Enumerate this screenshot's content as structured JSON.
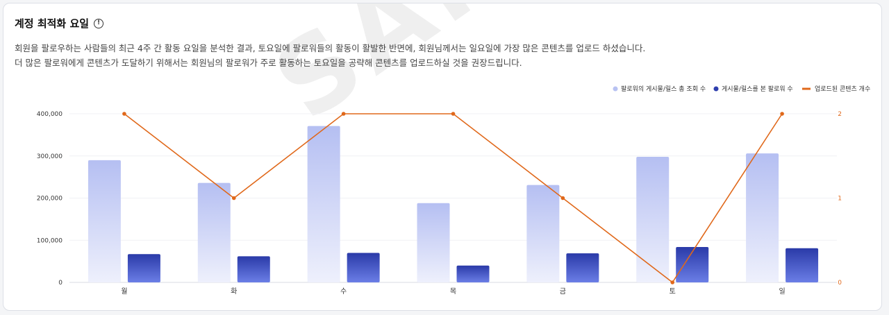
{
  "header": {
    "title": "계정 최적화 요일",
    "info_icon": "info-icon",
    "desc_line1": "회원을 팔로우하는 사람들의 최근 4주 간 활동 요일을 분석한 결과, 토요일에 팔로워들의 활동이 활발한 반면에, 회원님께서는 일요일에 가장 많은 콘텐츠를 업로드 하셨습니다.",
    "desc_line2": "더 많은 팔로워에게 콘텐츠가 도달하기 위해서는 회원님의 팔로워가 주로 활동하는 토요일을 공략해 콘텐츠를 업로드하실 것을 권장드립니다."
  },
  "watermark": "SAMPLE",
  "chart_data": {
    "type": "bar",
    "categories": [
      "월",
      "화",
      "수",
      "목",
      "금",
      "토",
      "일"
    ],
    "series": [
      {
        "name": "팔로워의 게시물/릴스 총 조회 수",
        "type": "bar",
        "axis": "left",
        "values": [
          290000,
          236000,
          371000,
          188000,
          231000,
          298000,
          306000
        ],
        "color": "#b8c2f2"
      },
      {
        "name": "게시물/릴스를 본 팔로워 수",
        "type": "bar",
        "axis": "left",
        "values": [
          67000,
          62000,
          70000,
          40000,
          69000,
          84000,
          81000
        ],
        "color": "#2f3fae"
      },
      {
        "name": "업로드된 콘텐츠 개수",
        "type": "line",
        "axis": "right",
        "values": [
          2,
          1,
          2,
          2,
          1,
          0,
          2
        ],
        "color": "#e0681a"
      }
    ],
    "left_axis": {
      "ylim": [
        0,
        400000
      ],
      "ticks": [
        0,
        100000,
        200000,
        300000,
        400000
      ],
      "tick_labels": [
        "0",
        "100,000",
        "200,000",
        "300,000",
        "400,000"
      ]
    },
    "right_axis": {
      "ylim": [
        0,
        2
      ],
      "ticks": [
        0,
        1,
        2
      ],
      "tick_labels": [
        "0",
        "1",
        "2"
      ]
    },
    "grid": true,
    "legend_position": "top-right"
  }
}
